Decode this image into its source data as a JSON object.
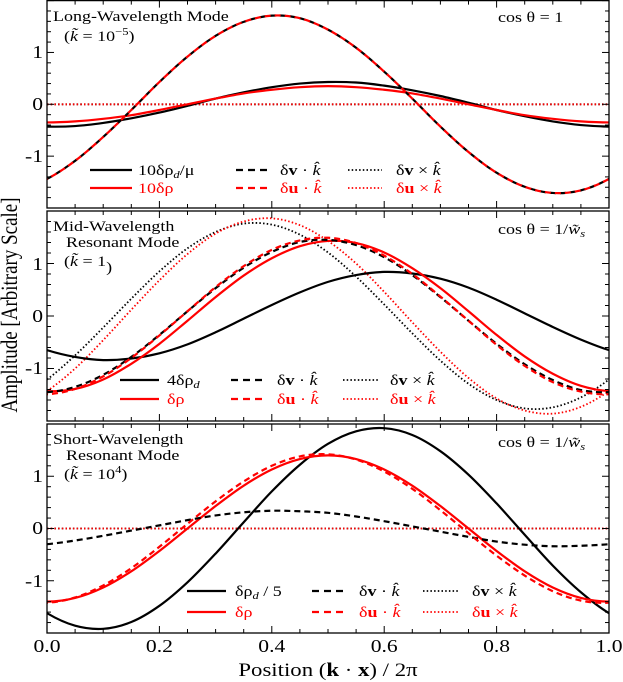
{
  "figure": {
    "ylabel": "Amplitude [Arbitrary Scale]",
    "xlabel": {
      "pre": "Position (",
      "k": "k",
      "dot": " · ",
      "x": "x",
      "post": ") / 2π"
    }
  },
  "chart_data": [
    {
      "type": "line",
      "title": "Long-Wavelength Mode",
      "title_lines": [
        "Long-Wavelength Mode"
      ],
      "parameter": {
        "open": "(",
        "var": "k̃",
        "eq": " = 10",
        "sup": "−5",
        "close": ")"
      },
      "annotation": {
        "pre": "cos θ = 1",
        "var": "",
        "sub": ""
      },
      "xlabel": "Position (k·x)/2π",
      "ylabel": "Amplitude [Arbitrary Scale]",
      "xlim": [
        0,
        1
      ],
      "ylim": [
        -2,
        2
      ],
      "xticks": [
        0,
        0.2,
        0.4,
        0.6,
        0.8,
        1.0
      ],
      "xtick_labels": [],
      "yticks": [
        -1,
        0,
        1
      ],
      "ytick_labels": [
        "-1",
        "0",
        "1"
      ],
      "xminor": 0.05,
      "yminor": 0.2,
      "grid": false,
      "legend_position": "lower center",
      "x": [
        0,
        0.05,
        0.1,
        0.15,
        0.2,
        0.25,
        0.3,
        0.35,
        0.4,
        0.45,
        0.5,
        0.55,
        0.6,
        0.65,
        0.7,
        0.75,
        0.8,
        0.85,
        0.9,
        0.95,
        1.0
      ],
      "series": [
        {
          "name": "10δρ_d/μ",
          "color": "#000000",
          "style": "solid",
          "label": {
            "pre": "10δρ",
            "sub": "d",
            "post": "/μ"
          },
          "values": [
            -0.43,
            -0.42,
            -0.36,
            -0.27,
            -0.16,
            -0.03,
            0.11,
            0.23,
            0.33,
            0.4,
            0.43,
            0.42,
            0.36,
            0.27,
            0.16,
            0.03,
            -0.11,
            -0.23,
            -0.33,
            -0.4,
            -0.43
          ]
        },
        {
          "name": "10δρ",
          "color": "#ff0000",
          "style": "solid",
          "label": {
            "pre": "10δρ",
            "sub": "",
            "post": ""
          },
          "values": [
            -0.35,
            -0.33,
            -0.28,
            -0.21,
            -0.11,
            0,
            0.11,
            0.21,
            0.28,
            0.33,
            0.35,
            0.33,
            0.28,
            0.21,
            0.11,
            0,
            -0.11,
            -0.21,
            -0.28,
            -0.33,
            -0.35
          ]
        },
        {
          "name": "δv·k̂",
          "color": "#000000",
          "style": "dashed",
          "label": {
            "pre": "δ",
            "bold": "v",
            "op": " · ",
            "vec": "k̂"
          },
          "values": [
            -1.44,
            -1.09,
            -0.63,
            -0.11,
            0.43,
            0.92,
            1.32,
            1.59,
            1.71,
            1.66,
            1.44,
            1.09,
            0.63,
            0.11,
            -0.43,
            -0.92,
            -1.32,
            -1.59,
            -1.71,
            -1.66,
            -1.44
          ]
        },
        {
          "name": "δu·k̂",
          "color": "#ff0000",
          "style": "dashed",
          "label": {
            "pre": "δ",
            "bold": "u",
            "op": " · ",
            "vec": "k̂"
          },
          "values": [
            -1.44,
            -1.09,
            -0.63,
            -0.11,
            0.43,
            0.92,
            1.32,
            1.59,
            1.71,
            1.66,
            1.44,
            1.09,
            0.63,
            0.11,
            -0.43,
            -0.92,
            -1.32,
            -1.59,
            -1.71,
            -1.66,
            -1.44
          ]
        },
        {
          "name": "δv×k̂",
          "color": "#000000",
          "style": "dotted",
          "label": {
            "pre": "δ",
            "bold": "v",
            "op": " × ",
            "vec": "k̂"
          },
          "values": [
            0,
            0,
            0,
            0,
            0,
            0,
            0,
            0,
            0,
            0,
            0,
            0,
            0,
            0,
            0,
            0,
            0,
            0,
            0,
            0,
            0
          ]
        },
        {
          "name": "δu×k̂",
          "color": "#ff0000",
          "style": "dotted",
          "label": {
            "pre": "δ",
            "bold": "u",
            "op": " × ",
            "vec": "k̂"
          },
          "values": [
            0,
            0,
            0,
            0,
            0,
            0,
            0,
            0,
            0,
            0,
            0,
            0,
            0,
            0,
            0,
            0,
            0,
            0,
            0,
            0,
            0
          ]
        }
      ]
    },
    {
      "type": "line",
      "title": "Mid-Wavelength Resonant Mode",
      "title_lines": [
        "Mid-Wavelength",
        "Resonant Mode"
      ],
      "parameter": {
        "open": "(",
        "var": "k̃",
        "eq": " = 1",
        "sup": "",
        "close": ")"
      },
      "annotation": {
        "pre": "cos θ = 1/",
        "var": "w̃",
        "sub": "s"
      },
      "xlabel": "Position (k·x)/2π",
      "ylabel": "Amplitude [Arbitrary Scale]",
      "xlim": [
        0,
        1
      ],
      "ylim": [
        -2,
        2
      ],
      "xticks": [
        0,
        0.2,
        0.4,
        0.6,
        0.8,
        1.0
      ],
      "xtick_labels": [],
      "yticks": [
        -1,
        0,
        1
      ],
      "ytick_labels": [
        "-1",
        "0",
        "1"
      ],
      "xminor": 0.05,
      "yminor": 0.2,
      "grid": false,
      "legend_position": "lower center",
      "x": [
        0,
        0.05,
        0.1,
        0.15,
        0.2,
        0.25,
        0.3,
        0.35,
        0.4,
        0.45,
        0.5,
        0.55,
        0.6,
        0.65,
        0.7,
        0.75,
        0.8,
        0.85,
        0.9,
        0.95,
        1.0
      ],
      "series": [
        {
          "name": "4δρ_d",
          "color": "#000000",
          "style": "solid",
          "label": {
            "pre": "4δρ",
            "sub": "d",
            "post": ""
          },
          "values": [
            -0.65,
            -0.78,
            -0.84,
            -0.81,
            -0.71,
            -0.54,
            -0.31,
            -0.05,
            0.21,
            0.45,
            0.65,
            0.78,
            0.84,
            0.81,
            0.71,
            0.54,
            0.31,
            0.05,
            -0.21,
            -0.45,
            -0.65
          ]
        },
        {
          "name": "δρ",
          "color": "#ff0000",
          "style": "solid",
          "label": {
            "pre": "δρ",
            "sub": "",
            "post": ""
          },
          "values": [
            -1.43,
            -1.39,
            -1.21,
            -0.91,
            -0.53,
            -0.09,
            0.36,
            0.77,
            1.1,
            1.33,
            1.43,
            1.39,
            1.21,
            0.91,
            0.53,
            0.09,
            -0.36,
            -0.77,
            -1.1,
            -1.33,
            -1.43
          ]
        },
        {
          "name": "δv·k̂",
          "color": "#000000",
          "style": "dashed",
          "label": {
            "pre": "δ",
            "bold": "v",
            "op": " · ",
            "vec": "k̂"
          },
          "values": [
            -1.45,
            -1.35,
            -1.12,
            -0.78,
            -0.36,
            0.09,
            0.53,
            0.92,
            1.22,
            1.41,
            1.45,
            1.35,
            1.12,
            0.78,
            0.36,
            -0.09,
            -0.53,
            -0.92,
            -1.22,
            -1.41,
            -1.45
          ]
        },
        {
          "name": "δu·k̂",
          "color": "#ff0000",
          "style": "dashed",
          "label": {
            "pre": "δ",
            "bold": "u",
            "op": " · ",
            "vec": "k̂"
          },
          "values": [
            -1.49,
            -1.39,
            -1.15,
            -0.8,
            -0.37,
            0.09,
            0.55,
            0.95,
            1.26,
            1.44,
            1.49,
            1.39,
            1.15,
            0.8,
            0.37,
            -0.09,
            -0.55,
            -0.95,
            -1.26,
            -1.44,
            -1.49
          ]
        },
        {
          "name": "δv×k̂",
          "color": "#000000",
          "style": "dotted",
          "label": {
            "pre": "δ",
            "bold": "v",
            "op": " × ",
            "vec": "k̂"
          },
          "values": [
            -1.21,
            -0.75,
            -0.22,
            0.33,
            0.85,
            1.29,
            1.6,
            1.76,
            1.74,
            1.55,
            1.21,
            0.75,
            0.22,
            -0.33,
            -0.85,
            -1.29,
            -1.6,
            -1.76,
            -1.74,
            -1.55,
            -1.21
          ]
        },
        {
          "name": "δu×k̂",
          "color": "#ff0000",
          "style": "dotted",
          "label": {
            "pre": "δ",
            "bold": "u",
            "op": " × ",
            "vec": "k̂"
          },
          "values": [
            -1.43,
            -1.0,
            -0.46,
            0.12,
            0.68,
            1.18,
            1.57,
            1.8,
            1.86,
            1.73,
            1.43,
            1.0,
            0.46,
            -0.12,
            -0.68,
            -1.18,
            -1.57,
            -1.8,
            -1.86,
            -1.73,
            -1.43
          ]
        }
      ]
    },
    {
      "type": "line",
      "title": "Short-Wavelength Resonant Mode",
      "title_lines": [
        "Short-Wavelength",
        "Resonant Mode"
      ],
      "parameter": {
        "open": "(",
        "var": "k̃",
        "eq": " = 10",
        "sup": "4",
        "close": ")"
      },
      "annotation": {
        "pre": "cos θ = 1/",
        "var": "w̃",
        "sub": "s"
      },
      "xlabel": "Position (k·x)/2π",
      "ylabel": "Amplitude [Arbitrary Scale]",
      "xlim": [
        0,
        1
      ],
      "ylim": [
        -2,
        2
      ],
      "xticks": [
        0,
        0.2,
        0.4,
        0.6,
        0.8,
        1.0
      ],
      "xtick_labels": [
        "0.0",
        "0.2",
        "0.4",
        "0.6",
        "0.8",
        "1.0"
      ],
      "yticks": [
        -1,
        0,
        1
      ],
      "ytick_labels": [
        "-1",
        "0",
        "1"
      ],
      "xminor": 0.05,
      "yminor": 0.2,
      "grid": false,
      "legend_position": "lower center",
      "x": [
        0,
        0.05,
        0.1,
        0.15,
        0.2,
        0.25,
        0.3,
        0.35,
        0.4,
        0.45,
        0.5,
        0.55,
        0.6,
        0.65,
        0.7,
        0.75,
        0.8,
        0.85,
        0.9,
        0.95,
        1.0
      ],
      "series": [
        {
          "name": "δρ_d/5",
          "color": "#000000",
          "style": "solid",
          "label": {
            "pre": "δρ",
            "sub": "d",
            "post": " / 5"
          },
          "values": [
            -1.62,
            -1.86,
            -1.92,
            -1.79,
            -1.48,
            -1.03,
            -0.48,
            0.12,
            0.71,
            1.22,
            1.62,
            1.86,
            1.92,
            1.79,
            1.48,
            1.03,
            0.48,
            -0.12,
            -0.71,
            -1.22,
            -1.62
          ]
        },
        {
          "name": "δρ",
          "color": "#ff0000",
          "style": "solid",
          "label": {
            "pre": "δρ",
            "sub": "",
            "post": ""
          },
          "values": [
            -1.4,
            -1.33,
            -1.13,
            -0.82,
            -0.43,
            0,
            0.43,
            0.82,
            1.13,
            1.33,
            1.4,
            1.33,
            1.13,
            0.82,
            0.43,
            0,
            -0.43,
            -0.82,
            -1.13,
            -1.33,
            -1.4
          ]
        },
        {
          "name": "δv·k̂",
          "color": "#000000",
          "style": "dashed",
          "label": {
            "pre": "δ",
            "bold": "v",
            "op": " · ",
            "vec": "k̂"
          },
          "values": [
            -0.3,
            -0.23,
            -0.14,
            -0.04,
            0.06,
            0.16,
            0.25,
            0.31,
            0.34,
            0.33,
            0.3,
            0.23,
            0.14,
            0.04,
            -0.06,
            -0.16,
            -0.25,
            -0.31,
            -0.34,
            -0.33,
            -0.3
          ]
        },
        {
          "name": "δu·k̂",
          "color": "#ff0000",
          "style": "dashed",
          "label": {
            "pre": "δ",
            "bold": "u",
            "op": " · ",
            "vec": "k̂"
          },
          "values": [
            -1.42,
            -1.32,
            -1.09,
            -0.76,
            -0.35,
            0.09,
            0.52,
            0.9,
            1.2,
            1.38,
            1.42,
            1.32,
            1.09,
            0.76,
            0.35,
            -0.09,
            -0.52,
            -0.9,
            -1.2,
            -1.38,
            -1.42
          ]
        },
        {
          "name": "δv×k̂",
          "color": "#000000",
          "style": "dotted",
          "label": {
            "pre": "δ",
            "bold": "v",
            "op": " × ",
            "vec": "k̂"
          },
          "values": [
            0,
            0,
            0,
            0,
            0,
            0,
            0,
            0,
            0,
            0,
            0,
            0,
            0,
            0,
            0,
            0,
            0,
            0,
            0,
            0,
            0
          ]
        },
        {
          "name": "δu×k̂",
          "color": "#ff0000",
          "style": "dotted",
          "label": {
            "pre": "δ",
            "bold": "u",
            "op": " × ",
            "vec": "k̂"
          },
          "values": [
            0,
            0,
            0,
            0,
            0,
            0,
            0,
            0,
            0,
            0,
            0,
            0,
            0,
            0,
            0,
            0,
            0,
            0,
            0,
            0,
            0
          ]
        }
      ]
    }
  ]
}
